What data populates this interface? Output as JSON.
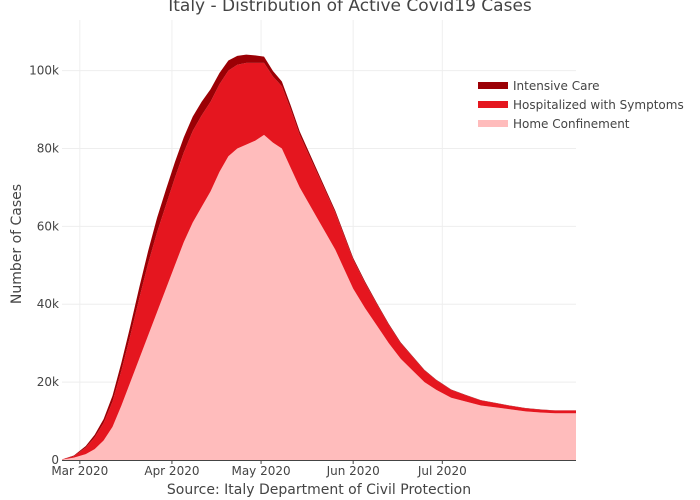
{
  "chart_data": {
    "type": "area",
    "stacked": true,
    "title": "Italy - Distribution of Active Covid19 Cases",
    "xlabel": "Source: Italy Department of Civil Protection",
    "ylabel": "Number of Cases",
    "ylim": [
      0,
      113000
    ],
    "x_range": [
      "2020-02-24",
      "2020-08-15"
    ],
    "x_ticks": [
      {
        "date": "2020-03-01",
        "label": "Mar 2020"
      },
      {
        "date": "2020-04-01",
        "label": "Apr 2020"
      },
      {
        "date": "2020-05-01",
        "label": "May 2020"
      },
      {
        "date": "2020-06-01",
        "label": "Jun 2020"
      },
      {
        "date": "2020-07-01",
        "label": "Jul 2020"
      }
    ],
    "y_ticks": [
      {
        "value": 0,
        "label": "0"
      },
      {
        "value": 20000,
        "label": "20k"
      },
      {
        "value": 40000,
        "label": "40k"
      },
      {
        "value": 60000,
        "label": "60k"
      },
      {
        "value": 80000,
        "label": "80k"
      },
      {
        "value": 100000,
        "label": "100k"
      }
    ],
    "grid": true,
    "legend_position": "top-right",
    "x": [
      "2020-02-24",
      "2020-02-28",
      "2020-03-03",
      "2020-03-06",
      "2020-03-09",
      "2020-03-12",
      "2020-03-15",
      "2020-03-18",
      "2020-03-21",
      "2020-03-24",
      "2020-03-27",
      "2020-03-30",
      "2020-04-02",
      "2020-04-05",
      "2020-04-08",
      "2020-04-11",
      "2020-04-14",
      "2020-04-17",
      "2020-04-20",
      "2020-04-23",
      "2020-04-26",
      "2020-04-29",
      "2020-05-02",
      "2020-05-05",
      "2020-05-08",
      "2020-05-11",
      "2020-05-14",
      "2020-05-17",
      "2020-05-20",
      "2020-05-23",
      "2020-05-26",
      "2020-05-29",
      "2020-06-01",
      "2020-06-05",
      "2020-06-09",
      "2020-06-13",
      "2020-06-17",
      "2020-06-21",
      "2020-06-25",
      "2020-06-29",
      "2020-07-04",
      "2020-07-09",
      "2020-07-14",
      "2020-07-19",
      "2020-07-24",
      "2020-07-29",
      "2020-08-03",
      "2020-08-08",
      "2020-08-15"
    ],
    "series": [
      {
        "name": "Home Confinement",
        "color": "#ffbcbc",
        "values": [
          100,
          600,
          1500,
          2800,
          5000,
          8500,
          14000,
          20000,
          26000,
          32000,
          38000,
          44000,
          50000,
          56000,
          61000,
          65000,
          69000,
          74000,
          78000,
          80000,
          81000,
          82000,
          83500,
          81500,
          80000,
          75000,
          70000,
          66000,
          62000,
          58000,
          54000,
          49000,
          44000,
          39000,
          34500,
          30000,
          26000,
          23000,
          20000,
          18000,
          16000,
          15000,
          14000,
          13500,
          13000,
          12500,
          12200,
          12000,
          12000
        ]
      },
      {
        "name": "Hospitalized with Symptoms",
        "color": "#e5161f",
        "values": [
          50,
          400,
          1700,
          3000,
          4500,
          6500,
          9000,
          12000,
          15500,
          18500,
          20500,
          21500,
          22500,
          23000,
          23500,
          23500,
          23000,
          22500,
          22000,
          21500,
          21000,
          20000,
          18500,
          17000,
          16000,
          15000,
          13500,
          12500,
          11500,
          10500,
          9500,
          8500,
          7500,
          6500,
          5500,
          4700,
          4000,
          3500,
          3000,
          2500,
          2000,
          1600,
          1300,
          1100,
          900,
          800,
          750,
          700,
          700
        ]
      },
      {
        "name": "Intensive Care",
        "color": "#9b0005",
        "values": [
          20,
          150,
          400,
          700,
          1000,
          1500,
          2000,
          2400,
          2800,
          3200,
          3700,
          4000,
          4000,
          3900,
          3700,
          3500,
          3200,
          2900,
          2600,
          2300,
          2100,
          1900,
          1600,
          1400,
          1200,
          1000,
          900,
          780,
          700,
          600,
          520,
          470,
          400,
          340,
          290,
          250,
          210,
          180,
          150,
          120,
          100,
          80,
          70,
          60,
          50,
          45,
          45,
          42,
          42
        ]
      }
    ]
  }
}
